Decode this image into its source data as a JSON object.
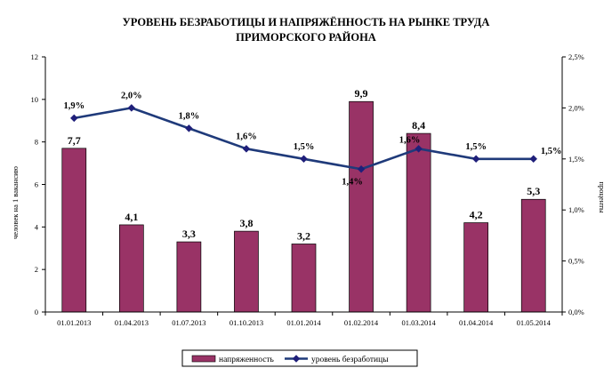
{
  "chart_data": {
    "type": "bar",
    "title_lines": [
      "УРОВЕНЬ БЕЗРАБОТИЦЫ И НАПРЯЖЁННОСТЬ НА РЫНКЕ ТРУДА",
      "ПРИМОРСКОГО РАЙОНА"
    ],
    "categories": [
      "01.01.2013",
      "01.04.2013",
      "01.07.2013",
      "01.10.2013",
      "01.01.2014",
      "01.02.2014",
      "01.03.2014",
      "01.04.2014",
      "01.05.2014"
    ],
    "ylabel": "человек на 1 вакансию",
    "y2label": "проценты",
    "ylim": [
      0,
      12
    ],
    "yticks": [
      "0",
      "2",
      "4",
      "6",
      "8",
      "10",
      "12"
    ],
    "y2lim": [
      0,
      2.5
    ],
    "y2ticks": [
      "0,0%",
      "0,5%",
      "1,0%",
      "1,5%",
      "2,0%",
      "2,5%"
    ],
    "grid": false,
    "legend_position": "bottom",
    "series": [
      {
        "name": "напряженность",
        "type": "bar",
        "axis": "left",
        "color": "#993366",
        "values": [
          7.7,
          4.1,
          3.3,
          3.8,
          3.2,
          9.9,
          8.4,
          4.2,
          5.3
        ],
        "labels": [
          "7,7",
          "4,1",
          "3,3",
          "3,8",
          "3,2",
          "9,9",
          "8,4",
          "4,2",
          "5,3"
        ]
      },
      {
        "name": "уровень безработицы",
        "type": "line",
        "axis": "right",
        "color": "#1f3a7a",
        "marker_color": "#1f1f7a",
        "values": [
          1.9,
          2.0,
          1.8,
          1.6,
          1.5,
          1.4,
          1.6,
          1.5,
          1.5
        ],
        "labels": [
          "1,9%",
          "2,0%",
          "1,8%",
          "1,6%",
          "1,5%",
          "1,4%",
          "1,6%",
          "1,5%",
          "1,5%"
        ]
      }
    ]
  }
}
